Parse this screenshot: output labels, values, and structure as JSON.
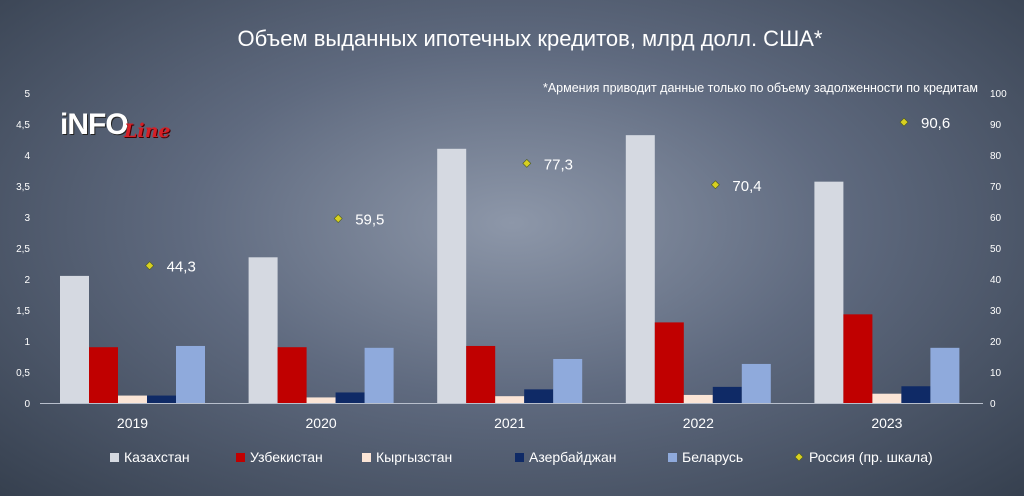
{
  "chart_data": {
    "type": "bar",
    "title": "Объем выданных ипотечных кредитов, млрд долл. США*",
    "note": "*Армения приводит данные только по объему задолженности по кредитам",
    "categories": [
      "2019",
      "2020",
      "2021",
      "2022",
      "2023"
    ],
    "ylim": [
      0,
      5
    ],
    "y_ticks": [
      "0",
      "0,5",
      "1",
      "1,5",
      "2",
      "2,5",
      "3",
      "3,5",
      "4",
      "4,5",
      "5"
    ],
    "y2lim": [
      0,
      100
    ],
    "y2_ticks": [
      "0",
      "10",
      "20",
      "30",
      "40",
      "50",
      "60",
      "70",
      "80",
      "90",
      "100"
    ],
    "series": [
      {
        "name": "Казахстан",
        "color": "#d5d9e1",
        "values": [
          2.05,
          2.35,
          4.1,
          4.32,
          3.57
        ]
      },
      {
        "name": "Узбекистан",
        "color": "#c00000",
        "values": [
          0.9,
          0.9,
          0.92,
          1.3,
          1.43
        ]
      },
      {
        "name": "Кыргызстан",
        "color": "#fbe5d6",
        "values": [
          0.12,
          0.09,
          0.11,
          0.13,
          0.15
        ]
      },
      {
        "name": "Азербайджан",
        "color": "#0f2a66",
        "values": [
          0.12,
          0.17,
          0.22,
          0.26,
          0.27
        ]
      },
      {
        "name": "Беларусь",
        "color": "#8faadc",
        "values": [
          0.92,
          0.89,
          0.71,
          0.63,
          0.89
        ]
      }
    ],
    "scatter_series": {
      "name": "Россия (пр. шкала)",
      "color": "#d8d020",
      "values": [
        44.3,
        59.5,
        77.3,
        70.4,
        90.6
      ],
      "labels": [
        "44,3",
        "59,5",
        "77,3",
        "70,4",
        "90,6"
      ]
    },
    "legend_position": "bottom"
  },
  "logo": {
    "main": "iNFO",
    "script": "Line"
  }
}
